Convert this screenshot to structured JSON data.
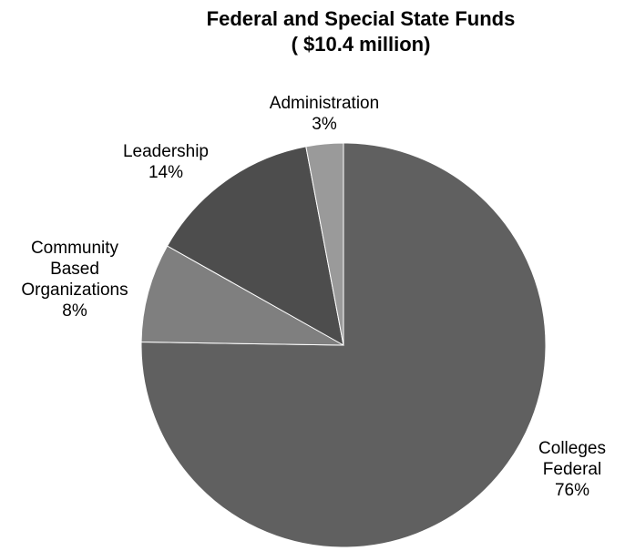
{
  "chart_data": {
    "type": "pie",
    "title": "Federal and Special State Funds",
    "subtitle": "( $10.4 million)",
    "slices": [
      {
        "label_lines": [
          "Colleges",
          "Federal"
        ],
        "percent_label": "76%",
        "value": 76,
        "color": "#606060"
      },
      {
        "label_lines": [
          "Community",
          "Based",
          "Organizations"
        ],
        "percent_label": "8%",
        "value": 8,
        "color": "#7f7f7f"
      },
      {
        "label_lines": [
          "Leadership"
        ],
        "percent_label": "14%",
        "value": 14,
        "color": "#4d4d4d"
      },
      {
        "label_lines": [
          "Administration"
        ],
        "percent_label": "3%",
        "value": 3,
        "color": "#9a9a9a"
      }
    ],
    "legend": "none"
  }
}
